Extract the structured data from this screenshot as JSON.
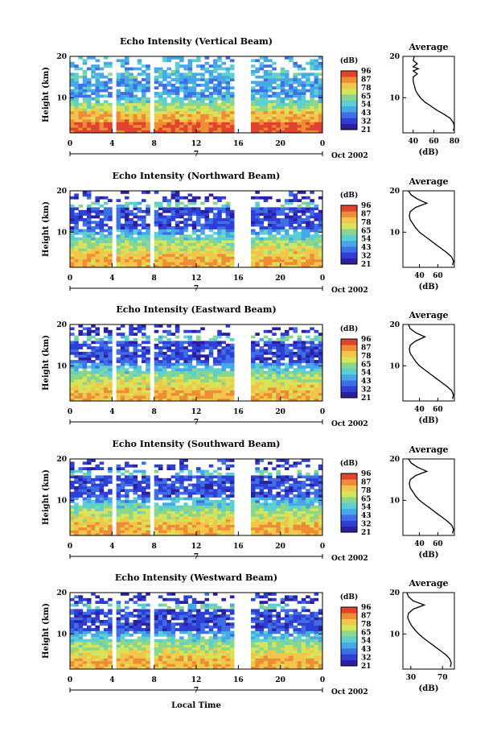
{
  "figure": {
    "xlabel": "Local Time"
  },
  "colors": {
    "palette": [
      "#2b1fa0",
      "#2f3fd6",
      "#3f6fe6",
      "#47a8e8",
      "#5cd0d0",
      "#8ad68c",
      "#d6e45a",
      "#f2c64a",
      "#ef8c36",
      "#e0442c"
    ]
  },
  "colorbar": {
    "unit": "(dB)",
    "ticks": [
      "96",
      "87",
      "78",
      "65",
      "54",
      "43",
      "32",
      "21"
    ]
  },
  "chart_data": [
    {
      "type": "heatmap",
      "title": "Echo Intensity (Vertical Beam)",
      "ylabel": "Height (km)",
      "xlim": [
        0,
        24
      ],
      "ylim": [
        1.5,
        20
      ],
      "x_ticks": [
        "0",
        "4",
        "8",
        "12",
        "16",
        "20",
        "0"
      ],
      "y_ticks": [
        "10",
        "20"
      ],
      "date_label": "Oct 2002",
      "day_label": "7",
      "missing_intervals": [
        [
          4.1,
          4.4
        ],
        [
          7.8,
          8.1
        ],
        [
          15.5,
          17.0
        ]
      ],
      "profile": {
        "title": "Average",
        "xlabel": "(dB)",
        "x_ticks": [
          "40",
          "60",
          "80"
        ],
        "xlim": [
          30,
          80
        ],
        "y_ticks": [
          "10",
          "20"
        ],
        "ylim": [
          1.5,
          20
        ],
        "points": [
          [
            79,
            2
          ],
          [
            80,
            3
          ],
          [
            79,
            4
          ],
          [
            76,
            5
          ],
          [
            70,
            6
          ],
          [
            63,
            7
          ],
          [
            57,
            8
          ],
          [
            51,
            9
          ],
          [
            47,
            10
          ],
          [
            44,
            11
          ],
          [
            42,
            12
          ],
          [
            41,
            13
          ],
          [
            40,
            14
          ],
          [
            40,
            15
          ],
          [
            44,
            15.8
          ],
          [
            40,
            16.5
          ],
          [
            45,
            17
          ],
          [
            40,
            17.5
          ],
          [
            44,
            18.2
          ],
          [
            40,
            19
          ],
          [
            41,
            20
          ]
        ]
      }
    },
    {
      "type": "heatmap",
      "title": "Echo Intensity (Northward Beam)",
      "ylabel": "Height (km)",
      "xlim": [
        0,
        24
      ],
      "ylim": [
        1.5,
        20
      ],
      "x_ticks": [
        "0",
        "4",
        "8",
        "12",
        "16",
        "20",
        "0"
      ],
      "y_ticks": [
        "10",
        "20"
      ],
      "date_label": "Oct 2002",
      "day_label": "7",
      "missing_intervals": [
        [
          4.1,
          4.4
        ],
        [
          7.8,
          8.1
        ],
        [
          15.5,
          17.0
        ]
      ],
      "profile": {
        "title": "Average",
        "xlabel": "(dB)",
        "x_ticks": [
          "40",
          "60"
        ],
        "xlim": [
          22,
          78
        ],
        "y_ticks": [
          "10",
          "20"
        ],
        "ylim": [
          1.5,
          20
        ],
        "points": [
          [
            76,
            2
          ],
          [
            77,
            3
          ],
          [
            75,
            4
          ],
          [
            70,
            5
          ],
          [
            64,
            6
          ],
          [
            58,
            7
          ],
          [
            52,
            8
          ],
          [
            46,
            9
          ],
          [
            40,
            10
          ],
          [
            36,
            11
          ],
          [
            33,
            12
          ],
          [
            30,
            13
          ],
          [
            29,
            14
          ],
          [
            30,
            15
          ],
          [
            36,
            16
          ],
          [
            48,
            17
          ],
          [
            38,
            18
          ],
          [
            31,
            19
          ],
          [
            28,
            20
          ]
        ]
      }
    },
    {
      "type": "heatmap",
      "title": "Echo Intensity (Eastward Beam)",
      "ylabel": "Height (km)",
      "xlim": [
        0,
        24
      ],
      "ylim": [
        1.5,
        20
      ],
      "x_ticks": [
        "0",
        "4",
        "8",
        "12",
        "16",
        "20",
        "0"
      ],
      "y_ticks": [
        "10",
        "20"
      ],
      "date_label": "Oct 2002",
      "day_label": "7",
      "missing_intervals": [
        [
          4.1,
          4.4
        ],
        [
          7.8,
          8.1
        ],
        [
          15.5,
          17.0
        ]
      ],
      "profile": {
        "title": "Average",
        "xlabel": "(dB)",
        "x_ticks": [
          "40",
          "60"
        ],
        "xlim": [
          22,
          78
        ],
        "y_ticks": [
          "10",
          "20"
        ],
        "ylim": [
          1.5,
          20
        ],
        "points": [
          [
            76,
            2
          ],
          [
            77,
            3
          ],
          [
            75,
            4
          ],
          [
            70,
            5
          ],
          [
            64,
            6
          ],
          [
            58,
            7
          ],
          [
            52,
            8
          ],
          [
            46,
            9
          ],
          [
            40,
            10
          ],
          [
            36,
            11
          ],
          [
            33,
            12
          ],
          [
            30,
            13
          ],
          [
            29,
            14
          ],
          [
            30,
            15
          ],
          [
            36,
            16
          ],
          [
            46,
            17
          ],
          [
            36,
            18
          ],
          [
            30,
            19
          ],
          [
            28,
            20
          ]
        ]
      }
    },
    {
      "type": "heatmap",
      "title": "Echo Intensity (Southward Beam)",
      "ylabel": "Height (km)",
      "xlim": [
        0,
        24
      ],
      "ylim": [
        1.5,
        20
      ],
      "x_ticks": [
        "0",
        "4",
        "8",
        "12",
        "16",
        "20",
        "0"
      ],
      "y_ticks": [
        "10",
        "20"
      ],
      "date_label": "Oct 2002",
      "day_label": "7",
      "missing_intervals": [
        [
          4.1,
          4.4
        ],
        [
          7.8,
          8.1
        ],
        [
          15.5,
          17.0
        ]
      ],
      "profile": {
        "title": "Average",
        "xlabel": "(dB)",
        "x_ticks": [
          "40",
          "60"
        ],
        "xlim": [
          22,
          78
        ],
        "y_ticks": [
          "10",
          "20"
        ],
        "ylim": [
          1.5,
          20
        ],
        "points": [
          [
            76,
            2
          ],
          [
            77,
            3
          ],
          [
            75,
            4
          ],
          [
            70,
            5
          ],
          [
            64,
            6
          ],
          [
            58,
            7
          ],
          [
            52,
            8
          ],
          [
            46,
            9
          ],
          [
            40,
            10
          ],
          [
            36,
            11
          ],
          [
            33,
            12
          ],
          [
            30,
            13
          ],
          [
            29,
            14
          ],
          [
            30,
            15
          ],
          [
            36,
            16
          ],
          [
            48,
            17
          ],
          [
            38,
            18
          ],
          [
            31,
            19
          ],
          [
            28,
            20
          ]
        ]
      }
    },
    {
      "type": "heatmap",
      "title": "Echo Intensity (Westward Beam)",
      "ylabel": "Height (km)",
      "xlim": [
        0,
        24
      ],
      "ylim": [
        1.5,
        20
      ],
      "x_ticks": [
        "0",
        "4",
        "8",
        "12",
        "16",
        "20",
        "0"
      ],
      "y_ticks": [
        "10",
        "20"
      ],
      "date_label": "Oct 2002",
      "day_label": "7",
      "missing_intervals": [
        [
          4.1,
          4.4
        ],
        [
          7.8,
          8.1
        ],
        [
          15.5,
          17.0
        ]
      ],
      "profile": {
        "title": "Average",
        "xlabel": "(dB)",
        "x_ticks": [
          "30",
          "70"
        ],
        "xlim": [
          20,
          85
        ],
        "y_ticks": [
          "10",
          "20"
        ],
        "ylim": [
          1.5,
          20
        ],
        "points": [
          [
            80,
            2
          ],
          [
            81,
            3
          ],
          [
            79,
            4
          ],
          [
            74,
            5
          ],
          [
            67,
            6
          ],
          [
            60,
            7
          ],
          [
            53,
            8
          ],
          [
            46,
            9
          ],
          [
            40,
            10
          ],
          [
            35,
            11
          ],
          [
            31,
            12
          ],
          [
            28,
            13
          ],
          [
            26,
            14
          ],
          [
            27,
            15
          ],
          [
            33,
            16
          ],
          [
            47,
            17
          ],
          [
            33,
            18
          ],
          [
            27,
            19
          ],
          [
            25,
            20
          ]
        ]
      }
    }
  ]
}
